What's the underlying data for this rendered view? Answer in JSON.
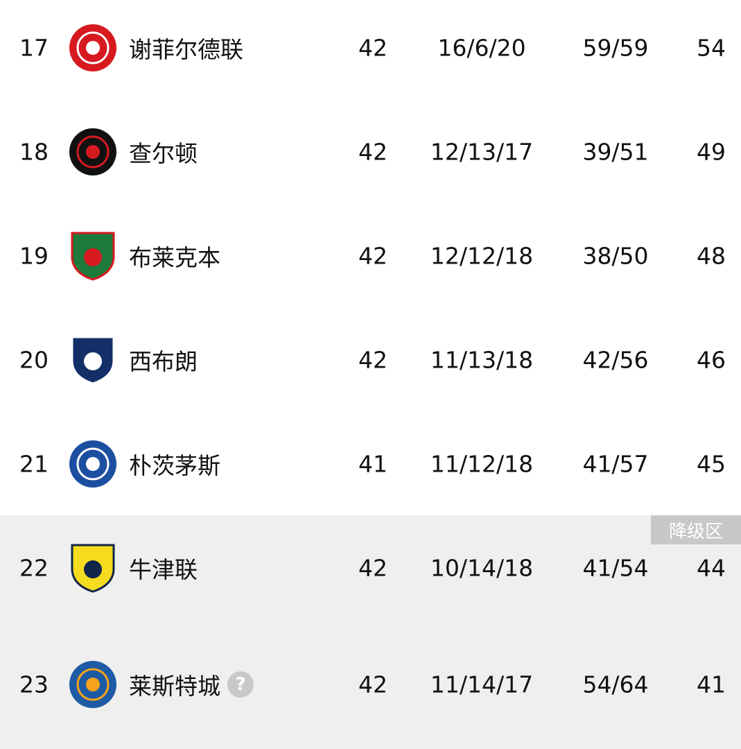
{
  "zone_label": "降级区",
  "rows": [
    {
      "rank": "17",
      "team": "谢菲尔德联",
      "played": "42",
      "wdl": "16/6/20",
      "goals": "59/59",
      "points": "54",
      "logo": "sheffield-united-crest",
      "logo_colors": [
        "#d71920",
        "#ffffff"
      ],
      "zone": ""
    },
    {
      "rank": "18",
      "team": "查尔顿",
      "played": "42",
      "wdl": "12/13/17",
      "goals": "39/51",
      "points": "49",
      "logo": "charlton-athletic-crest",
      "logo_colors": [
        "#111111",
        "#d71920"
      ],
      "zone": ""
    },
    {
      "rank": "19",
      "team": "布莱克本",
      "played": "42",
      "wdl": "12/12/18",
      "goals": "38/50",
      "points": "48",
      "logo": "blackburn-rovers-crest",
      "logo_colors": [
        "#1d7a3a",
        "#d71920"
      ],
      "zone": ""
    },
    {
      "rank": "20",
      "team": "西布朗",
      "played": "42",
      "wdl": "11/13/18",
      "goals": "42/56",
      "points": "46",
      "logo": "west-brom-crest",
      "logo_colors": [
        "#122f67",
        "#ffffff"
      ],
      "zone": ""
    },
    {
      "rank": "21",
      "team": "朴茨茅斯",
      "played": "41",
      "wdl": "11/12/18",
      "goals": "41/57",
      "points": "45",
      "logo": "portsmouth-crest",
      "logo_colors": [
        "#1c4fa0",
        "#ffffff"
      ],
      "zone": ""
    },
    {
      "rank": "22",
      "team": "牛津联",
      "played": "42",
      "wdl": "10/14/18",
      "goals": "41/54",
      "points": "44",
      "logo": "oxford-united-crest",
      "logo_colors": [
        "#f5dc1e",
        "#11254a"
      ],
      "zone": "relegation"
    },
    {
      "rank": "23",
      "team": "莱斯特城",
      "played": "42",
      "wdl": "11/14/17",
      "goals": "54/64",
      "points": "41",
      "logo": "leicester-city-crest",
      "logo_colors": [
        "#1d5ba4",
        "#f6a21a"
      ],
      "zone": "relegation",
      "help_icon": "question-icon"
    }
  ]
}
